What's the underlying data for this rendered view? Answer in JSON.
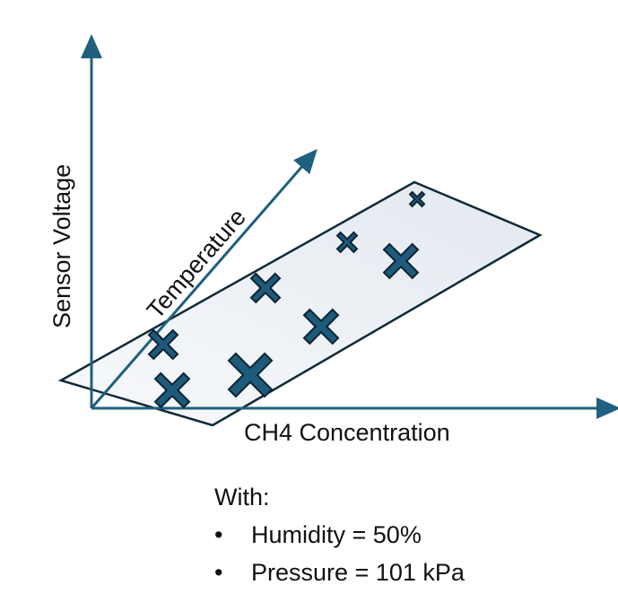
{
  "axes": {
    "y_label": "Sensor Voltage",
    "x_label": "CH4 Concentration",
    "z_label": "Temperature"
  },
  "conditions": {
    "heading": "With:",
    "items": [
      {
        "bullet": "•",
        "text": "Humidity = 50%"
      },
      {
        "bullet": "•",
        "text": "Pressure = 101 kPa"
      }
    ]
  },
  "colors": {
    "axis": "#1f5f7f",
    "marker_fill": "#1d5a7c",
    "marker_stroke": "#0c2433",
    "plane_fill": "#e8eef4",
    "plane_stroke": "#0f2a38"
  }
}
